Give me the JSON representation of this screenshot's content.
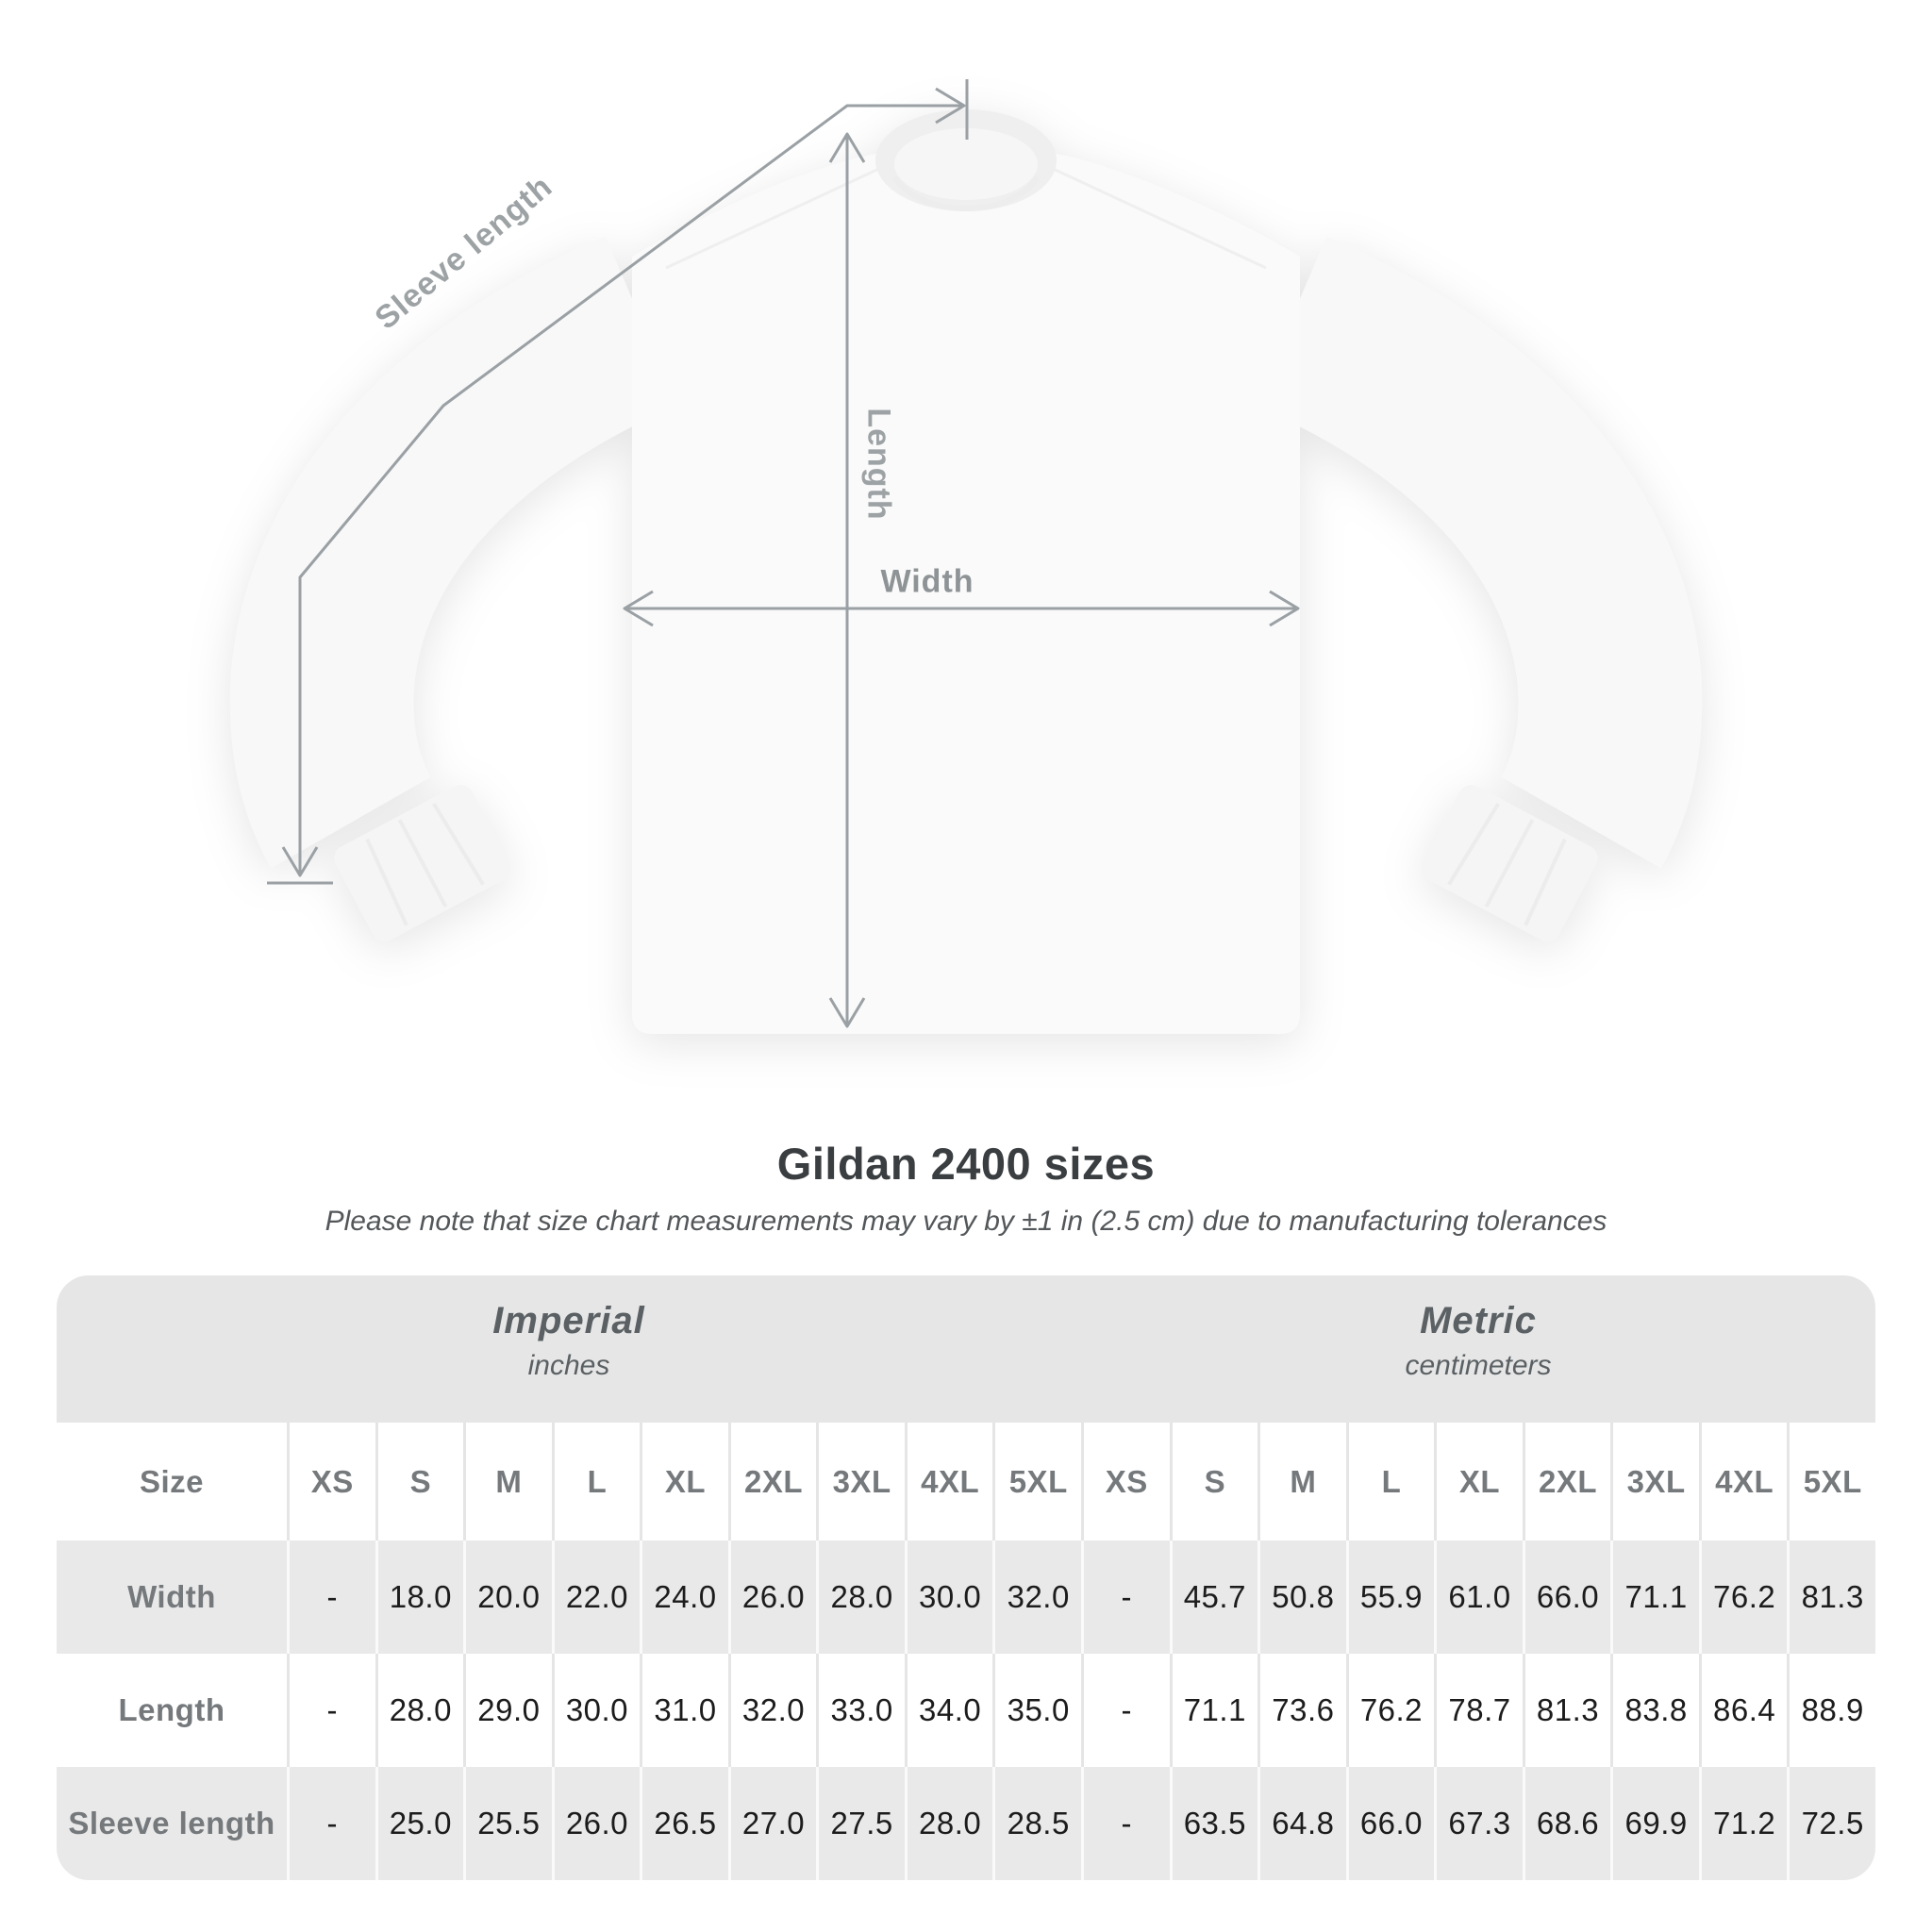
{
  "diagram": {
    "sleeve_length_label": "Sleeve length",
    "length_label": "Length",
    "width_label": "Width"
  },
  "title": "Gildan 2400 sizes",
  "subtitle": "Please note that size chart measurements may vary by ±1 in (2.5 cm) due to manufacturing tolerances",
  "table": {
    "unit_groups": [
      {
        "name": "Imperial",
        "unit": "inches"
      },
      {
        "name": "Metric",
        "unit": "centimeters"
      }
    ],
    "size_header": "Size",
    "size_columns": [
      "XS",
      "S",
      "M",
      "L",
      "XL",
      "2XL",
      "3XL",
      "4XL",
      "5XL",
      "XS",
      "S",
      "M",
      "L",
      "XL",
      "2XL",
      "3XL",
      "4XL",
      "5XL"
    ],
    "rows": [
      {
        "label": "Width",
        "values": [
          "-",
          "18.0",
          "20.0",
          "22.0",
          "24.0",
          "26.0",
          "28.0",
          "30.0",
          "32.0",
          "-",
          "45.7",
          "50.8",
          "55.9",
          "61.0",
          "66.0",
          "71.1",
          "76.2",
          "81.3"
        ]
      },
      {
        "label": "Length",
        "values": [
          "-",
          "28.0",
          "29.0",
          "30.0",
          "31.0",
          "32.0",
          "33.0",
          "34.0",
          "35.0",
          "-",
          "71.1",
          "73.6",
          "76.2",
          "78.7",
          "81.3",
          "83.8",
          "86.4",
          "88.9"
        ]
      },
      {
        "label": "Sleeve length",
        "values": [
          "-",
          "25.0",
          "25.5",
          "26.0",
          "26.5",
          "27.0",
          "27.5",
          "28.0",
          "28.5",
          "-",
          "63.5",
          "64.8",
          "66.0",
          "67.3",
          "68.6",
          "69.9",
          "71.2",
          "72.5"
        ]
      }
    ]
  },
  "chart_data": {
    "type": "table",
    "title": "Gildan 2400 sizes",
    "note": "Please note that size chart measurements may vary by ±1 in (2.5 cm) due to manufacturing tolerances",
    "measurements": [
      "Width",
      "Length",
      "Sleeve length"
    ],
    "sizes": [
      "XS",
      "S",
      "M",
      "L",
      "XL",
      "2XL",
      "3XL",
      "4XL",
      "5XL"
    ],
    "imperial_inches": {
      "Width": [
        null,
        18.0,
        20.0,
        22.0,
        24.0,
        26.0,
        28.0,
        30.0,
        32.0
      ],
      "Length": [
        null,
        28.0,
        29.0,
        30.0,
        31.0,
        32.0,
        33.0,
        34.0,
        35.0
      ],
      "Sleeve length": [
        null,
        25.0,
        25.5,
        26.0,
        26.5,
        27.0,
        27.5,
        28.0,
        28.5
      ]
    },
    "metric_centimeters": {
      "Width": [
        null,
        45.7,
        50.8,
        55.9,
        61.0,
        66.0,
        71.1,
        76.2,
        81.3
      ],
      "Length": [
        null,
        71.1,
        73.6,
        76.2,
        78.7,
        81.3,
        83.8,
        86.4,
        88.9
      ],
      "Sleeve length": [
        null,
        63.5,
        64.8,
        66.0,
        67.3,
        68.6,
        69.9,
        71.2,
        72.5
      ]
    },
    "colors": {
      "band_gray": "#e6e6e6",
      "row_gray": "#e9e9e9",
      "label_gray": "#75797c",
      "value_dark": "#1c1c1c",
      "line_gray": "#9aa0a4"
    }
  }
}
